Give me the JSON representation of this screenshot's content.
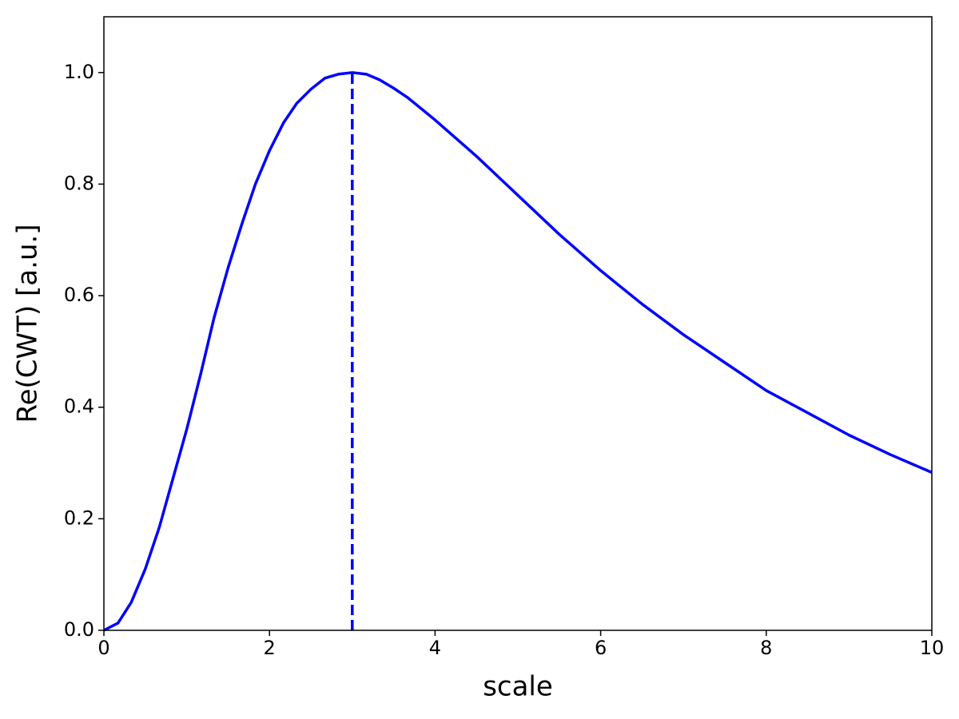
{
  "chart_data": {
    "type": "line",
    "xlabel": "scale",
    "ylabel": "Re(CWT) [a.u.]",
    "x": [
      0,
      0.17,
      0.33,
      0.5,
      0.67,
      0.83,
      1.0,
      1.17,
      1.33,
      1.5,
      1.67,
      1.83,
      2.0,
      2.17,
      2.33,
      2.5,
      2.67,
      2.83,
      3.0,
      3.17,
      3.33,
      3.5,
      3.67,
      4.0,
      4.5,
      5.0,
      5.5,
      6.0,
      6.5,
      7.0,
      7.5,
      8.0,
      8.5,
      9.0,
      9.5,
      10.0
    ],
    "values": [
      0,
      0.013,
      0.05,
      0.11,
      0.185,
      0.27,
      0.36,
      0.46,
      0.56,
      0.65,
      0.73,
      0.8,
      0.86,
      0.91,
      0.945,
      0.97,
      0.99,
      0.997,
      1.0,
      0.997,
      0.987,
      0.972,
      0.955,
      0.915,
      0.85,
      0.78,
      0.71,
      0.645,
      0.585,
      0.53,
      0.48,
      0.43,
      0.39,
      0.35,
      0.315,
      0.283
    ],
    "color": "#0000ff",
    "reference_line": {
      "x": 3,
      "y": [
        0,
        1.0
      ],
      "style": "dashed",
      "color": "#0000ff"
    },
    "xlim": [
      0,
      10
    ],
    "xticks": [
      0,
      2,
      4,
      6,
      8,
      10
    ],
    "ylim": [
      0,
      1.1
    ],
    "yticks": [
      {
        "value": 0,
        "label": "0.0"
      },
      {
        "value": 0.2,
        "label": "0.2"
      },
      {
        "value": 0.4,
        "label": "0.4"
      },
      {
        "value": 0.6,
        "label": "0.6"
      },
      {
        "value": 0.8,
        "label": "0.8"
      },
      {
        "value": 1.0,
        "label": "1.0"
      }
    ],
    "grid": false
  }
}
